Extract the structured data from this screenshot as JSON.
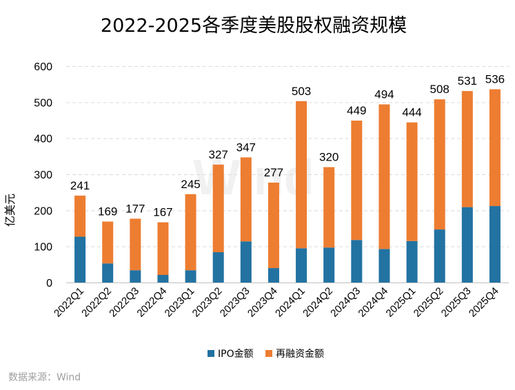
{
  "chart_data": {
    "type": "bar",
    "stacked": true,
    "title": "2022-2025各季度美股股权融资规模",
    "xlabel": "",
    "ylabel": "亿美元",
    "ylim": [
      0,
      600
    ],
    "yticks": [
      0,
      100,
      200,
      300,
      400,
      500,
      600
    ],
    "grid": true,
    "legend_position": "bottom",
    "categories": [
      "2022Q1",
      "2022Q2",
      "2022Q3",
      "2022Q4",
      "2023Q1",
      "2023Q2",
      "2023Q3",
      "2023Q4",
      "2024Q1",
      "2024Q2",
      "2024Q3",
      "2024Q4",
      "2025Q1",
      "2025Q2",
      "2025Q3",
      "2025Q4"
    ],
    "series": [
      {
        "name": "IPO金额",
        "color": "#2272a2",
        "values": [
          127,
          53,
          34,
          21,
          34,
          84,
          114,
          40,
          95,
          97,
          118,
          93,
          115,
          147,
          209,
          212
        ]
      },
      {
        "name": "再融资金额",
        "color": "#ed7d31",
        "values": [
          114,
          116,
          143,
          146,
          211,
          243,
          233,
          237,
          408,
          223,
          331,
          401,
          329,
          361,
          322,
          324
        ]
      }
    ],
    "totals": [
      241,
      169,
      177,
      167,
      245,
      327,
      347,
      277,
      503,
      320,
      449,
      494,
      444,
      508,
      531,
      536
    ],
    "source": "数据来源：Wind",
    "watermark": "Wind"
  }
}
